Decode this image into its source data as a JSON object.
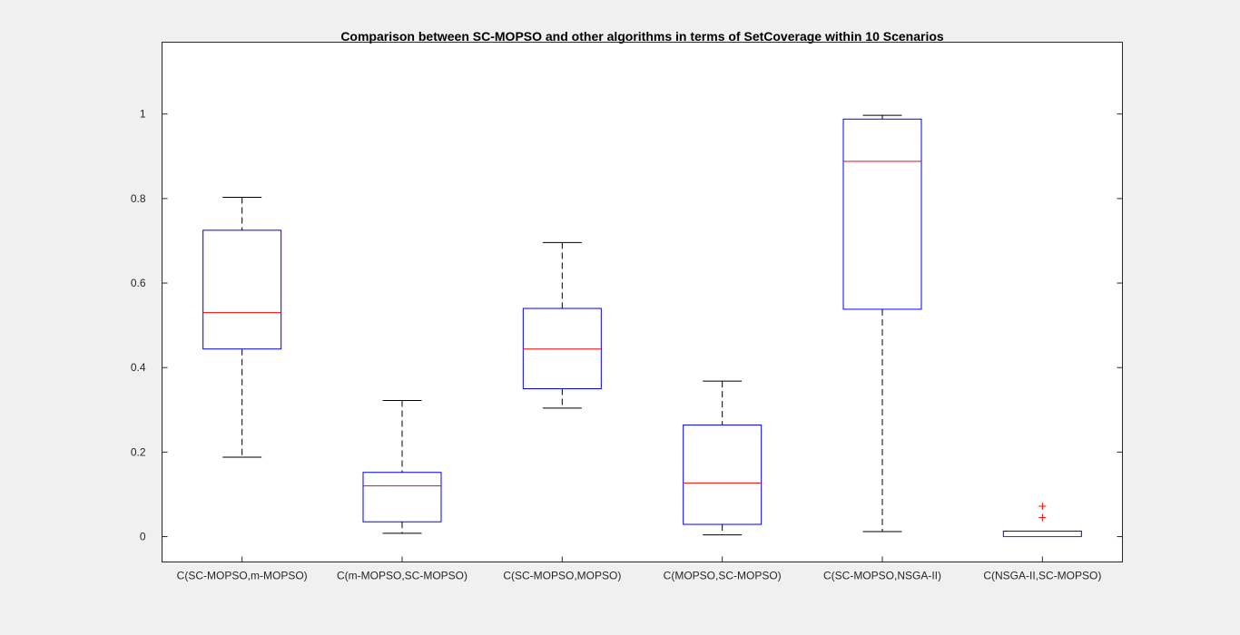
{
  "chart_data": {
    "type": "box",
    "title": "Comparison between SC-MOPSO and other algorithms in terms of SetCoverage within 10 Scenarios",
    "xlabel": "",
    "ylabel": "",
    "ylim": [
      -0.06,
      1.17
    ],
    "yticks": [
      0,
      0.2,
      0.4,
      0.6,
      0.8,
      1
    ],
    "ytick_labels": [
      "0",
      "0.2",
      "0.4",
      "0.6",
      "0.8",
      "1"
    ],
    "grid": false,
    "colors": {
      "box": "#0000ff",
      "median": "#ff0000",
      "whisker": "#000000",
      "outlier": "#ff0000",
      "axes_bg": "#ffffff",
      "figure_bg": "#f0f0f0"
    },
    "categories": [
      "C(SC-MOPSO,m-MOPSO)",
      "C(m-MOPSO,SC-MOPSO)",
      "C(SC-MOPSO,MOPSO)",
      "C(MOPSO,SC-MOPSO)",
      "C(SC-MOPSO,NSGA-II)",
      "C(NSGA-II,SC-MOPSO)"
    ],
    "boxes": [
      {
        "whisker_low": 0.188,
        "q1": 0.444,
        "median": 0.53,
        "q3": 0.725,
        "whisker_high": 0.803,
        "outliers": []
      },
      {
        "whisker_low": 0.008,
        "q1": 0.035,
        "median": 0.12,
        "q3": 0.152,
        "whisker_high": 0.322,
        "outliers": []
      },
      {
        "whisker_low": 0.304,
        "q1": 0.35,
        "median": 0.444,
        "q3": 0.54,
        "whisker_high": 0.696,
        "outliers": []
      },
      {
        "whisker_low": 0.004,
        "q1": 0.029,
        "median": 0.127,
        "q3": 0.264,
        "whisker_high": 0.368,
        "outliers": []
      },
      {
        "whisker_low": 0.012,
        "q1": 0.538,
        "median": 0.888,
        "q3": 0.988,
        "whisker_high": 0.997,
        "outliers": []
      },
      {
        "whisker_low": 0.0,
        "q1": 0.0,
        "median": 0.0,
        "q3": 0.013,
        "whisker_high": 0.013,
        "outliers": [
          0.072,
          0.045
        ]
      }
    ]
  }
}
